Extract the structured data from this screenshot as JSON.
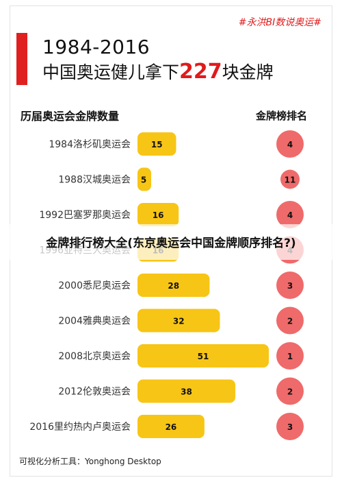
{
  "hashtag": "#永洪BI数说奥运#",
  "title": {
    "line1": "1984-2016",
    "line2_prefix": "中国奥运健儿拿下",
    "line2_number": "227",
    "line2_suffix": "块金牌"
  },
  "left_header": "历届奥运会金牌数量",
  "right_header": "金牌榜排名",
  "overlay_caption": "金牌排行榜大全(东京奥运会中国金牌顺序排名?)",
  "footer": "可视化分析工具：Yonghong Desktop",
  "colors": {
    "bar": "#f7c515",
    "rank_circle": "#ef6a6a",
    "accent": "#e01b1b"
  },
  "chart_data": {
    "type": "bar",
    "orientation": "horizontal",
    "categories": [
      "1984洛杉矶奥运会",
      "1988汉城奥运会",
      "1992巴塞罗那奥运会",
      "1996亚特兰大奥运会",
      "2000悉尼奥运会",
      "2004雅典奥运会",
      "2008北京奥运会",
      "2012伦敦奥运会",
      "2016里约热内卢奥运会"
    ],
    "values": [
      15,
      5,
      16,
      16,
      28,
      32,
      51,
      38,
      26
    ],
    "ranks": [
      4,
      11,
      4,
      4,
      3,
      2,
      1,
      2,
      3
    ],
    "xlim": [
      0,
      51
    ],
    "grid": false
  }
}
